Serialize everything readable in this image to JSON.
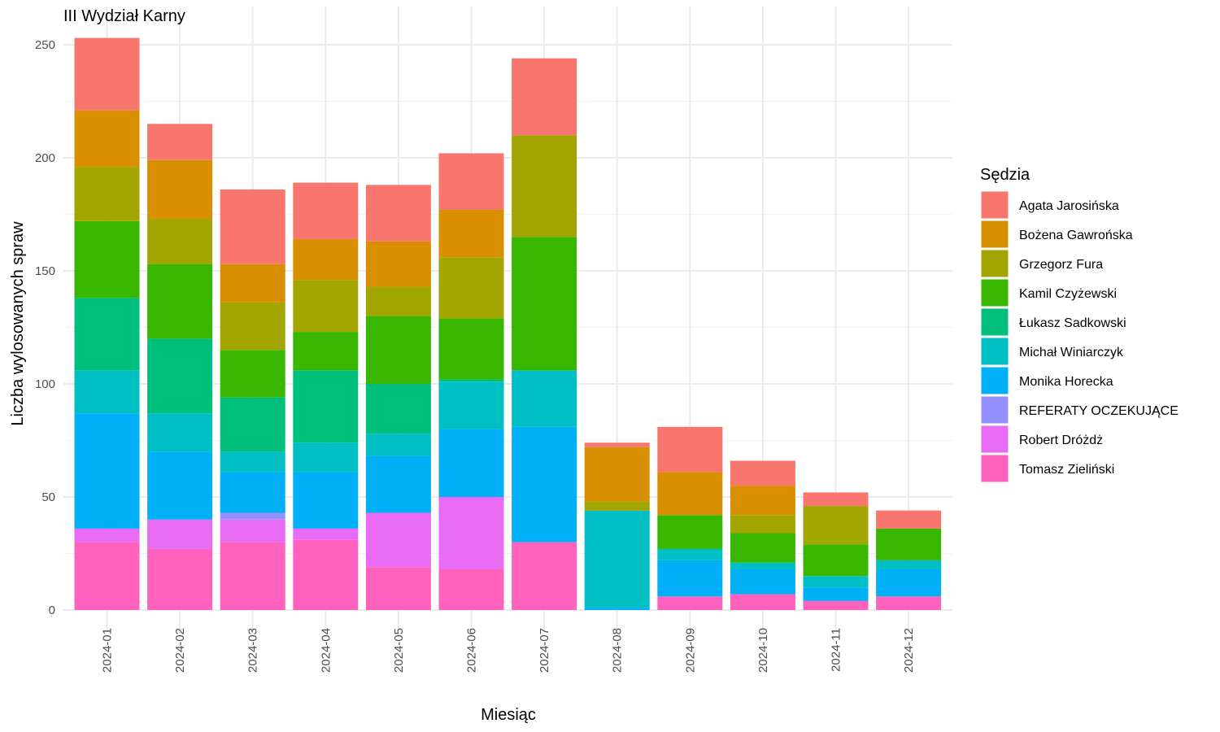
{
  "chart_data": {
    "type": "bar",
    "stacked": true,
    "title": "III Wydział Karny",
    "xlabel": "Miesiąc",
    "ylabel": "Liczba wylosowanych spraw",
    "ylim": [
      0,
      260
    ],
    "yticks": [
      0,
      50,
      100,
      150,
      200,
      250
    ],
    "grid": true,
    "legend": {
      "title": "Sędzia",
      "placement": "right"
    },
    "categories": [
      "2024-01",
      "2024-02",
      "2024-03",
      "2024-04",
      "2024-05",
      "2024-06",
      "2024-07",
      "2024-08",
      "2024-09",
      "2024-10",
      "2024-11",
      "2024-12"
    ],
    "series": [
      {
        "name": "Agata Jarosińska",
        "color": "#F8766D",
        "values": [
          32,
          16,
          33,
          25,
          25,
          25,
          34,
          2,
          20,
          11,
          6,
          8
        ]
      },
      {
        "name": "Bożena Gawrońska",
        "color": "#D89000",
        "values": [
          25,
          26,
          17,
          18,
          20,
          21,
          0,
          24,
          19,
          13,
          0,
          0
        ]
      },
      {
        "name": "Grzegorz Fura",
        "color": "#A3A500",
        "values": [
          24,
          20,
          21,
          23,
          13,
          27,
          45,
          4,
          0,
          8,
          17,
          0
        ]
      },
      {
        "name": "Kamil Czyżewski",
        "color": "#39B600",
        "values": [
          34,
          33,
          21,
          17,
          30,
          27,
          59,
          0,
          15,
          13,
          14,
          14
        ]
      },
      {
        "name": "Łukasz Sadkowski",
        "color": "#00BF7D",
        "values": [
          32,
          33,
          24,
          32,
          22,
          1,
          0,
          0,
          0,
          0,
          0,
          0
        ]
      },
      {
        "name": "Michał Winiarczyk",
        "color": "#00BFC4",
        "values": [
          19,
          17,
          9,
          13,
          10,
          21,
          25,
          43,
          5,
          3,
          5,
          4
        ]
      },
      {
        "name": "Monika Horecka",
        "color": "#00B0F6",
        "values": [
          51,
          30,
          18,
          25,
          25,
          30,
          51,
          1,
          16,
          11,
          6,
          12
        ]
      },
      {
        "name": "REFERATY OCZEKUJĄCE",
        "color": "#9590FF",
        "values": [
          0,
          0,
          3,
          0,
          0,
          0,
          0,
          0,
          0,
          0,
          0,
          0
        ]
      },
      {
        "name": "Robert Dróżdż",
        "color": "#E76BF3",
        "values": [
          6,
          13,
          10,
          5,
          24,
          32,
          0,
          0,
          0,
          0,
          0,
          0
        ]
      },
      {
        "name": "Tomasz Zieliński",
        "color": "#FF62BC",
        "values": [
          30,
          27,
          30,
          31,
          19,
          18,
          30,
          0,
          6,
          7,
          4,
          6
        ]
      }
    ]
  }
}
